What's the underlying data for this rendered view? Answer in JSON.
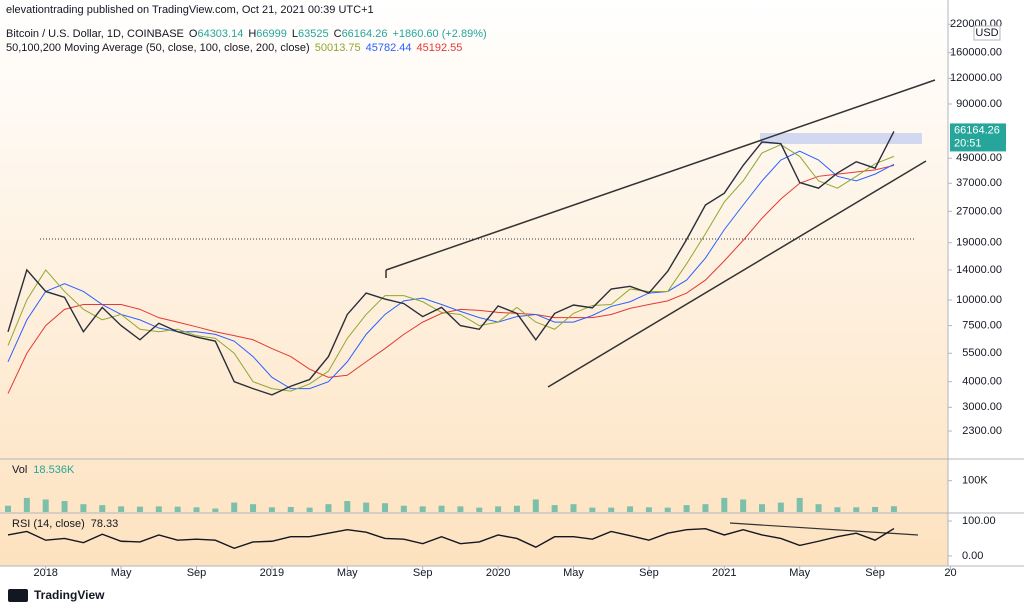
{
  "header": {
    "publisher": "elevationtrading published on TradingView.com, Oct 21, 2021 00:39 UTC+1"
  },
  "footer": {
    "brand": "TradingView"
  },
  "chart_data": [
    {
      "type": "line",
      "title": "Bitcoin / U.S. Dollar, 1D, COINBASE",
      "ohlc": [
        {
          "label": "O",
          "value": 64303.14
        },
        {
          "label": "H",
          "value": 66999.0
        },
        {
          "label": "L",
          "value": 63525.0
        },
        {
          "label": "C",
          "value": 66164.26
        }
      ],
      "change": "+1860.60 (+2.89%)",
      "indicator": "50,100,200 Moving Average (50, close, 100, close, 200, close)",
      "currency": "USD",
      "countdown": "20:51",
      "log_scale": true,
      "x": [
        "2017-11",
        "2017-12",
        "2018-01",
        "2018-02",
        "2018-03",
        "2018-04",
        "2018-05",
        "2018-06",
        "2018-07",
        "2018-08",
        "2018-09",
        "2018-10",
        "2018-11",
        "2018-12",
        "2019-01",
        "2019-02",
        "2019-03",
        "2019-04",
        "2019-05",
        "2019-06",
        "2019-07",
        "2019-08",
        "2019-09",
        "2019-10",
        "2019-11",
        "2019-12",
        "2020-01",
        "2020-02",
        "2020-03",
        "2020-04",
        "2020-05",
        "2020-06",
        "2020-07",
        "2020-08",
        "2020-09",
        "2020-10",
        "2020-11",
        "2020-12",
        "2021-01",
        "2021-02",
        "2021-03",
        "2021-04",
        "2021-05",
        "2021-06",
        "2021-07",
        "2021-08",
        "2021-09",
        "2021-10"
      ],
      "series": [
        {
          "color": "#2a2e39",
          "values": [
            7000,
            14000,
            11000,
            10300,
            7000,
            9200,
            7500,
            6400,
            7700,
            7000,
            6600,
            6300,
            4000,
            3700,
            3450,
            3800,
            4100,
            5300,
            8500,
            10800,
            10100,
            9600,
            8300,
            9200,
            7500,
            7200,
            9350,
            8600,
            6400,
            8600,
            9450,
            9150,
            11300,
            11650,
            10800,
            13800,
            19700,
            29000,
            33100,
            45200,
            58800,
            57700,
            37300,
            35000,
            41500,
            47100,
            43800,
            66164.26
          ]
        },
        {
          "color": "#8fa832",
          "last": 50013.75,
          "values": [
            6000,
            10000,
            14000,
            11000,
            9000,
            8000,
            8500,
            7200,
            7000,
            7200,
            6700,
            6500,
            5500,
            4000,
            3700,
            3600,
            3900,
            4500,
            6500,
            8500,
            10500,
            10500,
            9800,
            8700,
            8500,
            7500,
            7800,
            9200,
            7800,
            7200,
            8600,
            9400,
            9500,
            11300,
            11000,
            11000,
            15000,
            21000,
            30000,
            38000,
            52000,
            57000,
            50000,
            38000,
            35000,
            40000,
            46000,
            50013.75
          ]
        },
        {
          "color": "#2962ff",
          "last": 45782.44,
          "values": [
            5000,
            8000,
            11000,
            12000,
            11000,
            9500,
            8500,
            8000,
            7300,
            7000,
            7000,
            6800,
            6300,
            5300,
            4200,
            3700,
            3700,
            4000,
            5000,
            6800,
            8500,
            9900,
            10200,
            9500,
            8800,
            8200,
            7800,
            8300,
            8500,
            7800,
            7800,
            8400,
            9300,
            9800,
            10800,
            11000,
            12500,
            16000,
            22000,
            29000,
            38000,
            48000,
            53000,
            48000,
            40000,
            38000,
            41000,
            45782.44
          ]
        },
        {
          "color": "#e53935",
          "last": 45192.55,
          "values": [
            3500,
            5500,
            7500,
            9000,
            9500,
            9500,
            9500,
            9000,
            8200,
            7800,
            7400,
            7000,
            6700,
            6400,
            5800,
            5300,
            4600,
            4200,
            4300,
            5000,
            5800,
            6800,
            7800,
            8600,
            9000,
            8900,
            8700,
            8600,
            8500,
            8200,
            8200,
            8200,
            8500,
            9100,
            9500,
            9900,
            10800,
            12500,
            15500,
            19500,
            25000,
            31000,
            37000,
            40000,
            41000,
            42000,
            43000,
            45192.55
          ]
        }
      ],
      "ylim": [
        1700,
        236000
      ],
      "yticks": [
        {
          "value": 2300,
          "label": "2300.00"
        },
        {
          "value": 3000,
          "label": "3000.00"
        },
        {
          "value": 4000,
          "label": "4000.00"
        },
        {
          "value": 5500,
          "label": "5500.00"
        },
        {
          "value": 7500,
          "label": "7500.00"
        },
        {
          "value": 10000,
          "label": "10000.00"
        },
        {
          "value": 14000,
          "label": "14000.00"
        },
        {
          "value": 19000,
          "label": "19000.00"
        },
        {
          "value": 27000,
          "label": "27000.00"
        },
        {
          "value": 37000,
          "label": "37000.00"
        },
        {
          "value": 49000,
          "label": "49000.00"
        },
        {
          "value": 90000,
          "label": "90000.00"
        },
        {
          "value": 120000,
          "label": "120000.00"
        },
        {
          "value": 160000,
          "label": "160000.00"
        },
        {
          "value": 220000,
          "label": "220000.00"
        }
      ],
      "xticks": [
        {
          "value": "2018-01",
          "label": "2018"
        },
        {
          "value": "2018-05",
          "label": "May"
        },
        {
          "value": "2018-09",
          "label": "Sep"
        },
        {
          "value": "2019-01",
          "label": "2019"
        },
        {
          "value": "2019-05",
          "label": "May"
        },
        {
          "value": "2019-09",
          "label": "Sep"
        },
        {
          "value": "2020-01",
          "label": "2020"
        },
        {
          "value": "2020-05",
          "label": "May"
        },
        {
          "value": "2020-09",
          "label": "Sep"
        },
        {
          "value": "2021-01",
          "label": "2021"
        },
        {
          "value": "2021-05",
          "label": "May"
        },
        {
          "value": "2021-09",
          "label": "Sep"
        },
        {
          "value": "2022-01",
          "label": "20"
        }
      ]
    },
    {
      "type": "bar",
      "title": "Vol",
      "last": {
        "value": 18536,
        "label": "18.536K"
      },
      "color": "#26a69a",
      "x": [
        "2017-11",
        "2017-12",
        "2018-01",
        "2018-02",
        "2018-03",
        "2018-04",
        "2018-05",
        "2018-06",
        "2018-07",
        "2018-08",
        "2018-09",
        "2018-10",
        "2018-11",
        "2018-12",
        "2019-01",
        "2019-02",
        "2019-03",
        "2019-04",
        "2019-05",
        "2019-06",
        "2019-07",
        "2019-08",
        "2019-09",
        "2019-10",
        "2019-11",
        "2019-12",
        "2020-01",
        "2020-02",
        "2020-03",
        "2020-04",
        "2020-05",
        "2020-06",
        "2020-07",
        "2020-08",
        "2020-09",
        "2020-10",
        "2020-11",
        "2020-12",
        "2021-01",
        "2021-02",
        "2021-03",
        "2021-04",
        "2021-05",
        "2021-06",
        "2021-07",
        "2021-08",
        "2021-09",
        "2021-10"
      ],
      "values": [
        20000,
        45000,
        40000,
        35000,
        25000,
        22000,
        18000,
        17000,
        18000,
        17000,
        15000,
        11000,
        30000,
        25000,
        15000,
        16000,
        14000,
        25000,
        35000,
        30000,
        28000,
        20000,
        18000,
        20000,
        18000,
        14000,
        18000,
        20000,
        40000,
        22000,
        25000,
        14000,
        14000,
        18000,
        15000,
        14000,
        22000,
        25000,
        45000,
        40000,
        25000,
        30000,
        45000,
        25000,
        15000,
        15000,
        16000,
        18536
      ],
      "ylim": [
        0,
        166000
      ],
      "yticks": [
        {
          "value": 100000,
          "label": "100K"
        }
      ]
    },
    {
      "type": "line",
      "title": "RSI (14, close)",
      "last": 78.33,
      "color": "#131722",
      "x": [
        "2017-11",
        "2017-12",
        "2018-01",
        "2018-02",
        "2018-03",
        "2018-04",
        "2018-05",
        "2018-06",
        "2018-07",
        "2018-08",
        "2018-09",
        "2018-10",
        "2018-11",
        "2018-12",
        "2019-01",
        "2019-02",
        "2019-03",
        "2019-04",
        "2019-05",
        "2019-06",
        "2019-07",
        "2019-08",
        "2019-09",
        "2019-10",
        "2019-11",
        "2019-12",
        "2020-01",
        "2020-02",
        "2020-03",
        "2020-04",
        "2020-05",
        "2020-06",
        "2020-07",
        "2020-08",
        "2020-09",
        "2020-10",
        "2020-11",
        "2020-12",
        "2021-01",
        "2021-02",
        "2021-03",
        "2021-04",
        "2021-05",
        "2021-06",
        "2021-07",
        "2021-08",
        "2021-09",
        "2021-10"
      ],
      "values": [
        60,
        70,
        45,
        50,
        38,
        62,
        42,
        40,
        60,
        45,
        48,
        45,
        22,
        40,
        42,
        55,
        55,
        65,
        75,
        68,
        50,
        48,
        35,
        55,
        35,
        40,
        60,
        50,
        25,
        55,
        55,
        48,
        70,
        58,
        45,
        65,
        75,
        78,
        60,
        75,
        60,
        50,
        30,
        42,
        55,
        65,
        45,
        78.33
      ],
      "ylim": [
        -26,
        120
      ],
      "yticks": [
        {
          "value": 100,
          "label": "100.00"
        },
        {
          "value": 0,
          "label": "0.00"
        }
      ]
    }
  ]
}
